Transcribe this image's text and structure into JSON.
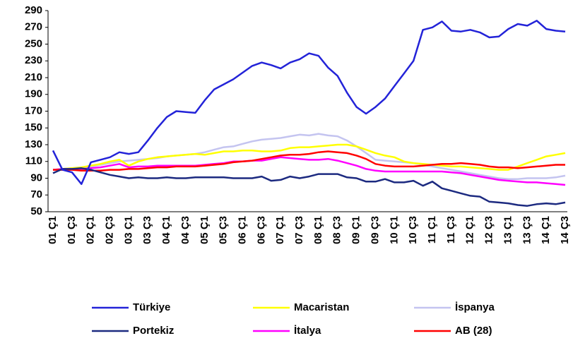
{
  "chart_data": {
    "type": "line",
    "categories": [
      "01 Ç1",
      null,
      "01 Ç3",
      null,
      "02 Ç1",
      null,
      "02 Ç3",
      null,
      "03 Ç1",
      null,
      "03 Ç3",
      null,
      "04 Ç1",
      null,
      "04 Ç3",
      null,
      "05 Ç1",
      null,
      "05 Ç3",
      null,
      "06 Ç1",
      null,
      "06 Ç3",
      null,
      "07 Ç1",
      null,
      "07 Ç3",
      null,
      "08 Ç1",
      null,
      "08 Ç3",
      null,
      "09 Ç1",
      null,
      "09 Ç3",
      null,
      "10 Ç1",
      null,
      "10 Ç3",
      null,
      "11 Ç1",
      null,
      "11 Ç3",
      null,
      "12 Ç1",
      null,
      "12 Ç3",
      null,
      "13 Ç1",
      null,
      "13 Ç3",
      null,
      "14 Ç1",
      null,
      "14 Ç3"
    ],
    "series": [
      {
        "name": "Türkiye",
        "color": "#2323d8",
        "values": [
          123,
          100,
          97,
          83,
          109,
          112,
          115,
          121,
          119,
          121,
          135,
          150,
          163,
          170,
          169,
          168,
          183,
          196,
          202,
          208,
          216,
          224,
          228,
          225,
          221,
          228,
          232,
          239,
          236,
          222,
          212,
          192,
          175,
          167,
          175,
          185,
          200,
          215,
          230,
          267,
          270,
          277,
          266,
          265,
          267,
          264,
          258,
          259,
          268,
          274,
          272,
          278,
          268,
          266,
          265
        ]
      },
      {
        "name": "Macaristan",
        "color": "#ffff00",
        "values": [
          100,
          101,
          102,
          103,
          105,
          107,
          110,
          112,
          105,
          110,
          113,
          115,
          116,
          117,
          118,
          119,
          118,
          120,
          122,
          122,
          123,
          123,
          122,
          122,
          123,
          126,
          127,
          127,
          128,
          129,
          130,
          130,
          128,
          124,
          120,
          117,
          115,
          110,
          108,
          107,
          106,
          105,
          104,
          104,
          103,
          102,
          101,
          100,
          100,
          104,
          108,
          112,
          116,
          118,
          120
        ]
      },
      {
        "name": "İspanya",
        "color": "#c4c4f0",
        "values": [
          100,
          101,
          102,
          103,
          104,
          106,
          108,
          110,
          111,
          112,
          113,
          114,
          116,
          117,
          118,
          119,
          121,
          124,
          127,
          128,
          131,
          134,
          136,
          137,
          138,
          140,
          142,
          141,
          143,
          141,
          140,
          135,
          128,
          120,
          112,
          111,
          110,
          109,
          108,
          106,
          104,
          102,
          100,
          98,
          96,
          94,
          92,
          90,
          89,
          89,
          90,
          90,
          90,
          91,
          93
        ]
      },
      {
        "name": "Portekiz",
        "color": "#1c2a80",
        "values": [
          96,
          101,
          101,
          102,
          100,
          97,
          94,
          92,
          90,
          91,
          90,
          90,
          91,
          90,
          90,
          91,
          91,
          91,
          91,
          90,
          90,
          90,
          92,
          87,
          88,
          92,
          90,
          92,
          95,
          95,
          95,
          91,
          90,
          86,
          86,
          89,
          85,
          85,
          87,
          81,
          86,
          78,
          75,
          72,
          69,
          68,
          62,
          61,
          60,
          58,
          57,
          59,
          60,
          59,
          61
        ]
      },
      {
        "name": "İtalya",
        "color": "#ff00ff",
        "values": [
          100,
          101,
          101,
          101,
          102,
          103,
          105,
          107,
          103,
          104,
          104,
          105,
          105,
          105,
          105,
          105,
          106,
          107,
          108,
          110,
          110,
          111,
          111,
          113,
          115,
          114,
          113,
          112,
          112,
          113,
          111,
          108,
          105,
          101,
          99,
          98,
          98,
          98,
          98,
          98,
          98,
          98,
          97,
          96,
          94,
          92,
          90,
          88,
          87,
          86,
          85,
          85,
          84,
          83,
          82
        ]
      },
      {
        "name": "AB (28)",
        "color": "#ff0000",
        "values": [
          100,
          100,
          100,
          99,
          99,
          99,
          100,
          100,
          101,
          101,
          102,
          103,
          103,
          104,
          104,
          104,
          105,
          106,
          107,
          109,
          110,
          111,
          113,
          115,
          117,
          118,
          118,
          119,
          121,
          122,
          121,
          120,
          117,
          113,
          107,
          105,
          104,
          104,
          104,
          105,
          106,
          107,
          107,
          108,
          107,
          106,
          104,
          103,
          103,
          102,
          103,
          104,
          105,
          106,
          106
        ]
      }
    ],
    "ylim": [
      50,
      290
    ],
    "yticks": [
      50,
      70,
      90,
      110,
      130,
      150,
      170,
      190,
      210,
      230,
      250,
      270,
      290
    ]
  }
}
